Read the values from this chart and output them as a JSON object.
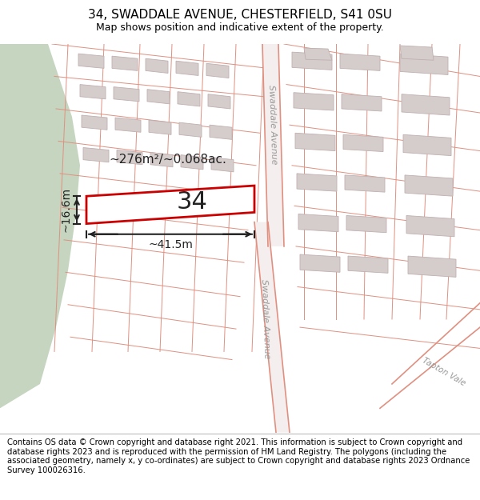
{
  "title": "34, SWADDALE AVENUE, CHESTERFIELD, S41 0SU",
  "subtitle": "Map shows position and indicative extent of the property.",
  "footer": "Contains OS data © Crown copyright and database right 2021. This information is subject to Crown copyright and database rights 2023 and is reproduced with the permission of HM Land Registry. The polygons (including the associated geometry, namely x, y co-ordinates) are subject to Crown copyright and database rights 2023 Ordnance Survey 100026316.",
  "map_bg": "#f5eeee",
  "green_area_color": "#c5d5c0",
  "road_line_color": "#e09080",
  "building_fill": "#d5cccc",
  "building_edge": "#c0b0b0",
  "highlight_fill": "#ffffff",
  "highlight_edge": "#cc0000",
  "road_label_1": "Swaddale Avenue",
  "road_label_2": "Swaddale Avenue",
  "road_label_3": "Tapton Vale",
  "property_label": "34",
  "area_label": "~276m²/~0.068ac.",
  "width_label": "~41.5m",
  "height_label": "~16.6m",
  "title_fontsize": 11,
  "subtitle_fontsize": 9,
  "footer_fontsize": 7.2
}
